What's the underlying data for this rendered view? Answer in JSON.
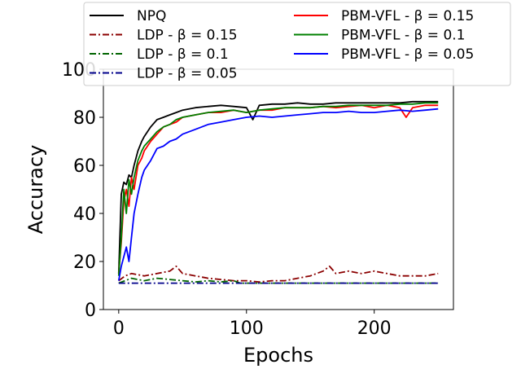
{
  "chart_data": {
    "type": "line",
    "title": "",
    "xlabel": "Epochs",
    "ylabel": "Accuracy",
    "xlim": [
      -12,
      262
    ],
    "ylim": [
      0,
      100
    ],
    "xticks": [
      0,
      100,
      200
    ],
    "yticks": [
      0,
      20,
      40,
      60,
      80,
      100
    ],
    "grid": false,
    "legend_position": "top, two columns, overlapping plot",
    "series": [
      {
        "name": "NPQ",
        "color": "#000000",
        "dash": "solid",
        "x": [
          0,
          2,
          4,
          6,
          8,
          10,
          12,
          15,
          18,
          20,
          25,
          30,
          35,
          40,
          45,
          50,
          60,
          70,
          80,
          90,
          100,
          105,
          110,
          120,
          130,
          140,
          150,
          160,
          170,
          180,
          190,
          200,
          210,
          220,
          230,
          240,
          250
        ],
        "y": [
          15,
          48,
          53,
          52,
          56,
          55,
          60,
          66,
          70,
          72,
          76,
          79,
          80,
          81,
          82,
          83,
          84,
          84.5,
          85,
          84.5,
          84,
          79,
          85,
          85.5,
          85.5,
          86,
          85.5,
          85.5,
          86,
          86,
          86,
          86,
          86,
          86,
          86.5,
          86.5,
          86.5
        ]
      },
      {
        "name": "LDP - β = 0.15",
        "color": "#8b0000",
        "dash": "dashdot",
        "x": [
          0,
          5,
          10,
          20,
          30,
          40,
          45,
          50,
          60,
          70,
          80,
          90,
          100,
          110,
          120,
          130,
          140,
          150,
          160,
          165,
          170,
          180,
          190,
          200,
          210,
          220,
          230,
          240,
          250
        ],
        "y": [
          12,
          14,
          15,
          14,
          15,
          16,
          18,
          15,
          14,
          13,
          12.5,
          12,
          12,
          11.5,
          12,
          12,
          13,
          14,
          16,
          18,
          15,
          16,
          15,
          16,
          15,
          14,
          14,
          14,
          15
        ]
      },
      {
        "name": "LDP - β = 0.1",
        "color": "#006400",
        "dash": "dashdot",
        "x": [
          0,
          5,
          10,
          20,
          30,
          40,
          50,
          60,
          70,
          80,
          90,
          95,
          100,
          120,
          150,
          200,
          250
        ],
        "y": [
          11,
          12,
          13,
          12,
          13,
          12.5,
          12,
          11.5,
          12,
          11.5,
          12,
          11,
          11,
          11,
          11,
          11,
          11
        ]
      },
      {
        "name": "LDP - β = 0.05",
        "color": "#00008b",
        "dash": "dashdot",
        "x": [
          0,
          50,
          100,
          150,
          200,
          250
        ],
        "y": [
          11,
          11,
          11,
          11,
          11,
          11
        ]
      },
      {
        "name": "PBM-VFL - β = 0.15",
        "color": "#ff0000",
        "dash": "solid",
        "x": [
          0,
          2,
          4,
          6,
          8,
          10,
          12,
          15,
          18,
          20,
          25,
          30,
          35,
          40,
          45,
          50,
          60,
          70,
          80,
          90,
          100,
          110,
          120,
          130,
          140,
          150,
          160,
          170,
          180,
          190,
          200,
          210,
          220,
          225,
          230,
          240,
          250
        ],
        "y": [
          15,
          28,
          45,
          50,
          43,
          55,
          50,
          60,
          63,
          66,
          70,
          73,
          76,
          77,
          78,
          80,
          81,
          82,
          82,
          83,
          82,
          83,
          83,
          84,
          84,
          84,
          84.5,
          84,
          84.5,
          85,
          84,
          85,
          84,
          80,
          84,
          85,
          85
        ]
      },
      {
        "name": "PBM-VFL - β = 0.1",
        "color": "#008000",
        "dash": "solid",
        "x": [
          0,
          2,
          4,
          6,
          8,
          10,
          12,
          15,
          18,
          20,
          25,
          30,
          35,
          40,
          45,
          50,
          60,
          70,
          80,
          90,
          100,
          110,
          120,
          130,
          140,
          150,
          160,
          170,
          180,
          190,
          200,
          210,
          220,
          230,
          240,
          250
        ],
        "y": [
          14,
          30,
          50,
          40,
          54,
          48,
          55,
          62,
          66,
          68,
          71,
          74,
          76,
          77,
          79,
          80,
          81,
          82,
          82.5,
          83,
          82,
          83,
          83.5,
          84,
          84,
          84,
          84.5,
          84.5,
          85,
          85,
          85,
          85,
          85.5,
          85.5,
          86,
          86
        ]
      },
      {
        "name": "PBM-VFL - β = 0.05",
        "color": "#0000ff",
        "dash": "solid",
        "x": [
          0,
          2,
          4,
          6,
          8,
          10,
          12,
          15,
          18,
          20,
          25,
          30,
          35,
          40,
          45,
          50,
          60,
          70,
          80,
          90,
          100,
          110,
          120,
          130,
          140,
          150,
          160,
          170,
          180,
          190,
          200,
          210,
          220,
          230,
          240,
          250
        ],
        "y": [
          12,
          18,
          22,
          26,
          20,
          30,
          40,
          48,
          55,
          58,
          62,
          67,
          68,
          70,
          71,
          73,
          75,
          77,
          78,
          79,
          80,
          80.5,
          80,
          80.5,
          81,
          81.5,
          82,
          82,
          82.5,
          82,
          82,
          82.5,
          83,
          82.5,
          83,
          83.5
        ]
      }
    ]
  }
}
